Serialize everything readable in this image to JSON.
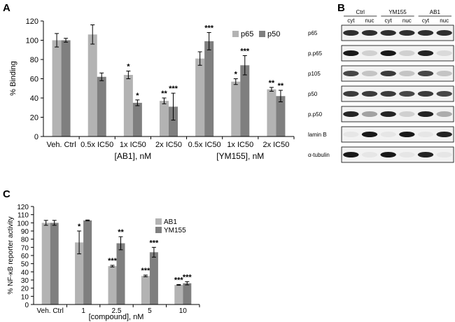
{
  "panel_labels": {
    "a": "A",
    "b": "B",
    "c": "C"
  },
  "colors": {
    "light": "#b3b3b3",
    "dark": "#7f7f7f",
    "blot": "#0d0d0d"
  },
  "chart_data": [
    {
      "id": "A",
      "type": "bar",
      "ylabel": "% Binding",
      "ylim": [
        0,
        120
      ],
      "yticks": [
        0,
        20,
        40,
        60,
        80,
        100,
        120
      ],
      "categories": [
        "Veh. Ctrl",
        "0.5x IC50",
        "1x IC50",
        "2x IC50",
        "0.5x IC50",
        "1x IC50",
        "2x IC50"
      ],
      "groups": [
        {
          "label": "[AB1], nM",
          "from": 1,
          "to": 3
        },
        {
          "label": "[YM155], nM",
          "from": 4,
          "to": 6
        }
      ],
      "legend_position": "top-right",
      "series": [
        {
          "name": "p65",
          "color": "#b3b3b3",
          "values": [
            100,
            106,
            64,
            37,
            81,
            57,
            49
          ],
          "errors": [
            7,
            10,
            4,
            3,
            7,
            3,
            2
          ],
          "stars": [
            "",
            "",
            "*",
            "**",
            "",
            "*",
            "**"
          ]
        },
        {
          "name": "p50",
          "color": "#7f7f7f",
          "values": [
            100,
            62,
            35,
            31,
            99,
            74,
            42
          ],
          "errors": [
            2,
            4,
            3,
            14,
            9,
            10,
            6
          ],
          "stars": [
            "",
            "",
            "*",
            "***",
            "***",
            "***",
            "**"
          ]
        }
      ]
    },
    {
      "id": "B",
      "type": "western_blot",
      "conditions": [
        "Ctrl",
        "YM155",
        "AB1"
      ],
      "fractions": [
        "cyt",
        "nuc",
        "cyt",
        "nuc",
        "cyt",
        "nuc"
      ],
      "rows": [
        {
          "label": "p65",
          "intensities": [
            0.85,
            0.85,
            0.85,
            0.85,
            0.85,
            0.85
          ]
        },
        {
          "label": "p.p65",
          "intensities": [
            0.95,
            0.15,
            0.95,
            0.15,
            0.9,
            0.1
          ]
        },
        {
          "label": "p105",
          "intensities": [
            0.75,
            0.2,
            0.8,
            0.2,
            0.75,
            0.2
          ]
        },
        {
          "label": "p50",
          "intensities": [
            0.8,
            0.8,
            0.8,
            0.75,
            0.8,
            0.75
          ]
        },
        {
          "label": "p.p50",
          "intensities": [
            0.9,
            0.35,
            0.9,
            0.15,
            0.9,
            0.3
          ]
        },
        {
          "label": "lamin B",
          "intensities": [
            0.05,
            0.95,
            0.05,
            0.95,
            0.05,
            0.9
          ]
        },
        {
          "label": "α-tubulin",
          "intensities": [
            0.95,
            0.05,
            0.95,
            0.05,
            0.9,
            0.05
          ]
        }
      ]
    },
    {
      "id": "C",
      "type": "bar",
      "ylabel": "% NF-κB reporter activity",
      "xlabel": "[compound], nM",
      "ylim": [
        0,
        120
      ],
      "yticks": [
        0,
        10,
        20,
        30,
        40,
        50,
        60,
        70,
        80,
        90,
        100,
        110,
        120
      ],
      "categories": [
        "Veh. Ctrl",
        "1",
        "2.5",
        "5",
        "10"
      ],
      "legend_position": "top-right",
      "series": [
        {
          "name": "AB1",
          "color": "#b3b3b3",
          "values": [
            100,
            76,
            47,
            35,
            24
          ],
          "errors": [
            3,
            14,
            1,
            1,
            0.5
          ],
          "stars": [
            "",
            "*",
            "***",
            "***",
            "***"
          ]
        },
        {
          "name": "YM155",
          "color": "#7f7f7f",
          "values": [
            100,
            103,
            75,
            64,
            26
          ],
          "errors": [
            3,
            0.5,
            8,
            6,
            2
          ],
          "stars": [
            "",
            "",
            "**",
            "***",
            "***"
          ]
        }
      ]
    }
  ]
}
